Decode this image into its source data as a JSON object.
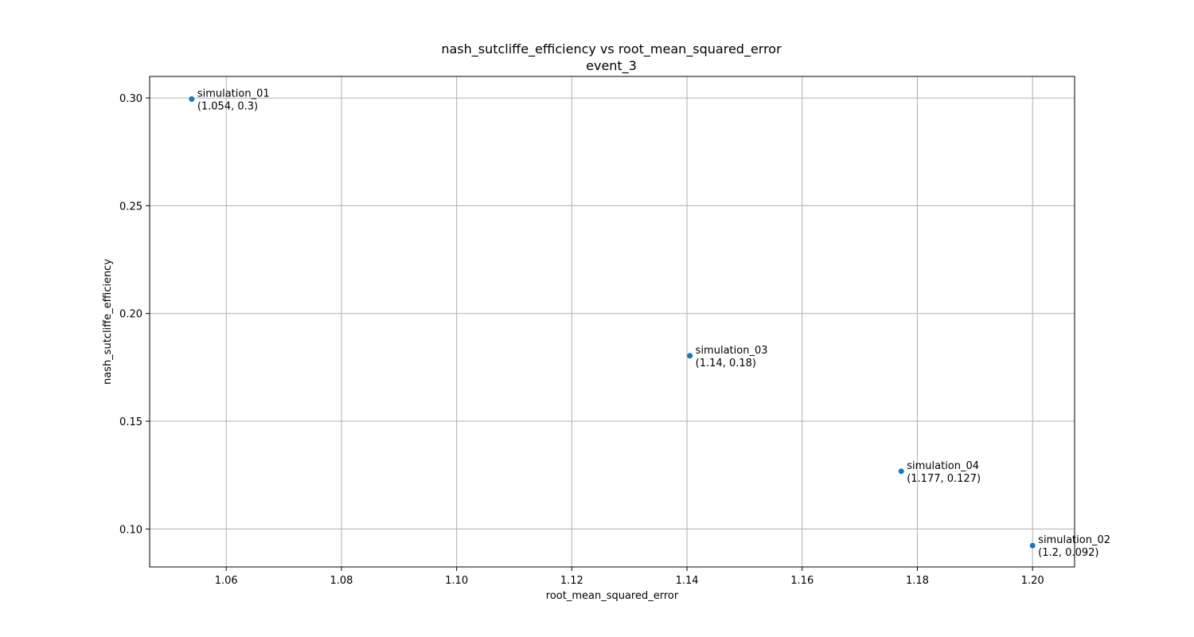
{
  "chart_data": {
    "type": "scatter",
    "title": "nash_sutcliffe_efficiency vs root_mean_squared_error",
    "subtitle": "event_3",
    "xlabel": "root_mean_squared_error",
    "ylabel": "nash_sutcliffe_efficiency",
    "xlim": [
      1.0467,
      1.2073
    ],
    "ylim": [
      0.0824,
      0.31
    ],
    "xticks": [
      1.06,
      1.08,
      1.1,
      1.12,
      1.14,
      1.16,
      1.18,
      1.2
    ],
    "xtick_labels": [
      "1.06",
      "1.08",
      "1.10",
      "1.12",
      "1.14",
      "1.16",
      "1.18",
      "1.20"
    ],
    "yticks": [
      0.1,
      0.15,
      0.2,
      0.25,
      0.3
    ],
    "ytick_labels": [
      "0.10",
      "0.15",
      "0.20",
      "0.25",
      "0.30"
    ],
    "grid": true,
    "color": "#1f77b4",
    "points": [
      {
        "name": "simulation_01",
        "x": 1.054,
        "y": 0.2995,
        "coord_label": "(1.054, 0.3)"
      },
      {
        "name": "simulation_03",
        "x": 1.1405,
        "y": 0.1804,
        "coord_label": "(1.14, 0.18)"
      },
      {
        "name": "simulation_04",
        "x": 1.1772,
        "y": 0.1268,
        "coord_label": "(1.177, 0.127)"
      },
      {
        "name": "simulation_02",
        "x": 1.2,
        "y": 0.0923,
        "coord_label": "(1.2, 0.092)"
      }
    ]
  }
}
